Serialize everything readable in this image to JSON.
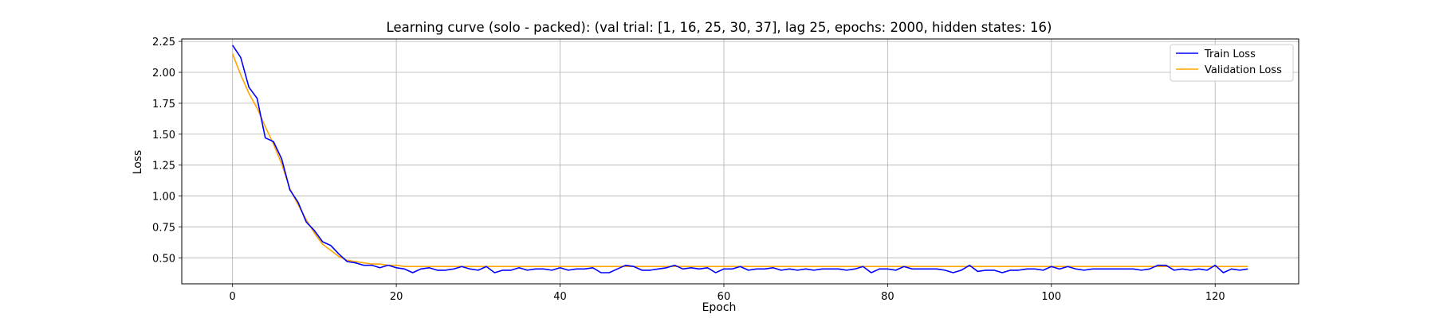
{
  "chart_data": {
    "type": "line",
    "title": "Learning curve (solo - packed): (val trial: [1, 16, 25, 30, 37], lag 25, epochs: 2000, hidden states: 16)",
    "xlabel": "Epoch",
    "ylabel": "Loss",
    "xlim": [
      -6.2,
      130.2
    ],
    "ylim": [
      0.29,
      2.27
    ],
    "x_ticks": [
      0,
      20,
      40,
      60,
      80,
      100,
      120
    ],
    "y_ticks": [
      0.5,
      0.75,
      1.0,
      1.25,
      1.5,
      1.75,
      2.0,
      2.25
    ],
    "y_tick_labels": [
      "0.50",
      "0.75",
      "1.00",
      "1.25",
      "1.50",
      "1.75",
      "2.00",
      "2.25"
    ],
    "grid": true,
    "legend": "upper right",
    "x": [
      0,
      1,
      2,
      3,
      4,
      5,
      6,
      7,
      8,
      9,
      10,
      11,
      12,
      13,
      14,
      15,
      16,
      17,
      18,
      19,
      20,
      21,
      22,
      23,
      24,
      25,
      26,
      27,
      28,
      29,
      30,
      31,
      32,
      33,
      34,
      35,
      36,
      37,
      38,
      39,
      40,
      41,
      42,
      43,
      44,
      45,
      46,
      47,
      48,
      49,
      50,
      51,
      52,
      53,
      54,
      55,
      56,
      57,
      58,
      59,
      60,
      61,
      62,
      63,
      64,
      65,
      66,
      67,
      68,
      69,
      70,
      71,
      72,
      73,
      74,
      75,
      76,
      77,
      78,
      79,
      80,
      81,
      82,
      83,
      84,
      85,
      86,
      87,
      88,
      89,
      90,
      91,
      92,
      93,
      94,
      95,
      96,
      97,
      98,
      99,
      100,
      101,
      102,
      103,
      104,
      105,
      106,
      107,
      108,
      109,
      110,
      111,
      112,
      113,
      114,
      115,
      116,
      117,
      118,
      119,
      120,
      121,
      122,
      123,
      124
    ],
    "series": [
      {
        "name": "Train Loss",
        "color": "#0000ff",
        "values": [
          2.22,
          2.12,
          1.88,
          1.79,
          1.47,
          1.44,
          1.3,
          1.05,
          0.95,
          0.79,
          0.72,
          0.63,
          0.6,
          0.53,
          0.47,
          0.46,
          0.44,
          0.44,
          0.42,
          0.44,
          0.42,
          0.41,
          0.38,
          0.41,
          0.42,
          0.4,
          0.4,
          0.41,
          0.43,
          0.41,
          0.4,
          0.43,
          0.38,
          0.4,
          0.4,
          0.42,
          0.4,
          0.41,
          0.41,
          0.4,
          0.42,
          0.4,
          0.41,
          0.41,
          0.42,
          0.38,
          0.38,
          0.41,
          0.44,
          0.43,
          0.4,
          0.4,
          0.41,
          0.42,
          0.44,
          0.41,
          0.42,
          0.41,
          0.42,
          0.38,
          0.41,
          0.41,
          0.43,
          0.4,
          0.41,
          0.41,
          0.42,
          0.4,
          0.41,
          0.4,
          0.41,
          0.4,
          0.41,
          0.41,
          0.41,
          0.4,
          0.41,
          0.43,
          0.38,
          0.41,
          0.41,
          0.4,
          0.43,
          0.41,
          0.41,
          0.41,
          0.41,
          0.4,
          0.38,
          0.4,
          0.44,
          0.39,
          0.4,
          0.4,
          0.38,
          0.4,
          0.4,
          0.41,
          0.41,
          0.4,
          0.43,
          0.41,
          0.43,
          0.41,
          0.4,
          0.41,
          0.41,
          0.41,
          0.41,
          0.41,
          0.41,
          0.4,
          0.41,
          0.44,
          0.44,
          0.4,
          0.41,
          0.4,
          0.41,
          0.4,
          0.44,
          0.38,
          0.41,
          0.4,
          0.41
        ]
      },
      {
        "name": "Validation Loss",
        "color": "#ffa500",
        "values": [
          2.15,
          1.98,
          1.83,
          1.71,
          1.56,
          1.42,
          1.26,
          1.06,
          0.93,
          0.81,
          0.7,
          0.61,
          0.56,
          0.51,
          0.48,
          0.47,
          0.46,
          0.45,
          0.45,
          0.44,
          0.44,
          0.43,
          0.43,
          0.43,
          0.43,
          0.43,
          0.43,
          0.43,
          0.43,
          0.43,
          0.43,
          0.43,
          0.43,
          0.43,
          0.43,
          0.43,
          0.43,
          0.43,
          0.43,
          0.43,
          0.43,
          0.43,
          0.43,
          0.43,
          0.43,
          0.43,
          0.43,
          0.43,
          0.43,
          0.43,
          0.43,
          0.43,
          0.43,
          0.43,
          0.43,
          0.43,
          0.43,
          0.43,
          0.43,
          0.43,
          0.43,
          0.43,
          0.43,
          0.43,
          0.43,
          0.43,
          0.43,
          0.43,
          0.43,
          0.43,
          0.43,
          0.43,
          0.43,
          0.43,
          0.43,
          0.43,
          0.43,
          0.43,
          0.43,
          0.43,
          0.43,
          0.43,
          0.43,
          0.43,
          0.43,
          0.43,
          0.43,
          0.43,
          0.43,
          0.43,
          0.43,
          0.43,
          0.43,
          0.43,
          0.43,
          0.43,
          0.43,
          0.43,
          0.43,
          0.43,
          0.43,
          0.43,
          0.43,
          0.43,
          0.43,
          0.43,
          0.43,
          0.43,
          0.43,
          0.43,
          0.43,
          0.43,
          0.43,
          0.43,
          0.43,
          0.43,
          0.43,
          0.43,
          0.43,
          0.43,
          0.43,
          0.43,
          0.43,
          0.43,
          0.43
        ]
      }
    ]
  }
}
